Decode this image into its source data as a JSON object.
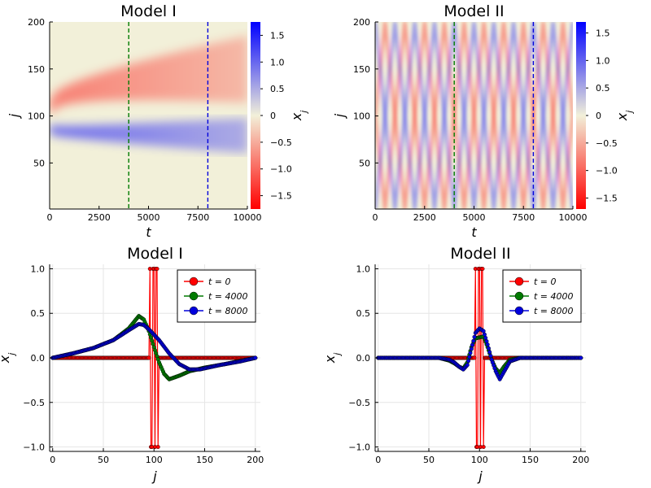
{
  "chart_data": [
    {
      "type": "heatmap",
      "title": "Model I",
      "xlabel": "t",
      "ylabel": "j",
      "colorbar_label": "x_j",
      "xlim": [
        0,
        10000
      ],
      "ylim": [
        1,
        200
      ],
      "xticks": [
        "0",
        "2500",
        "5000",
        "7500",
        "10000"
      ],
      "yticks": [
        "50",
        "100",
        "150",
        "200"
      ],
      "clim": [
        -1.75,
        1.75
      ],
      "colorbar_ticks": [
        "−1.5",
        "−1.0",
        "−0.5",
        "0",
        "0.5",
        "1.0",
        "1.5"
      ],
      "colors": {
        "negative": "#ff0000",
        "zero": "#f2f0d9",
        "positive": "#0000ff"
      },
      "vlines": [
        {
          "t": 4000,
          "color": "#007a00"
        },
        {
          "t": 8000,
          "color": "#0000dd"
        }
      ],
      "features": [
        {
          "kind": "band",
          "sign": "negative",
          "j_start": 110,
          "j_growth": 55,
          "peak": 0.3
        },
        {
          "kind": "band",
          "sign": "positive",
          "j_start": 85,
          "j_growth": -8,
          "peak": 0.35
        }
      ]
    },
    {
      "type": "heatmap",
      "title": "Model II",
      "xlabel": "t",
      "ylabel": "j",
      "colorbar_label": "x_j",
      "xlim": [
        0,
        10000
      ],
      "ylim": [
        1,
        200
      ],
      "xticks": [
        "0",
        "2500",
        "5000",
        "7500",
        "10000"
      ],
      "yticks": [
        "50",
        "100",
        "150",
        "200"
      ],
      "clim": [
        -1.7,
        1.7
      ],
      "colorbar_ticks": [
        "−1.5",
        "−1.0",
        "−0.5",
        "0",
        "0.5",
        "1.0",
        "1.5"
      ],
      "colors": {
        "negative": "#ff0000",
        "zero": "#f2f0d9",
        "positive": "#0000ff"
      },
      "vlines": [
        {
          "t": 4000,
          "color": "#007a00"
        },
        {
          "t": 8000,
          "color": "#0000dd"
        }
      ],
      "features": [
        {
          "kind": "reflecting-waves",
          "period": 1000,
          "origin_j": 100
        }
      ]
    },
    {
      "type": "line",
      "title": "Model I",
      "xlabel": "j",
      "ylabel": "x_j",
      "xlim": [
        -3,
        205
      ],
      "ylim": [
        -1.05,
        1.05
      ],
      "xticks": [
        "0",
        "50",
        "100",
        "150",
        "200"
      ],
      "yticks": [
        "−1.0",
        "−0.5",
        "0.0",
        "0.5",
        "1.0"
      ],
      "legend": "top-right",
      "series": [
        {
          "name": "t = 0",
          "color": "#ff0000",
          "profile": "initial",
          "points": [
            [
              0,
              0
            ],
            [
              94,
              0
            ],
            [
              96,
              1
            ],
            [
              97,
              -1
            ],
            [
              98,
              -1
            ],
            [
              99,
              1
            ],
            [
              100,
              1
            ],
            [
              101,
              -1
            ],
            [
              102,
              1
            ],
            [
              103,
              1
            ],
            [
              104,
              -1
            ],
            [
              106,
              0
            ],
            [
              200,
              0
            ]
          ]
        },
        {
          "name": "t = 4000",
          "color": "#007a00",
          "profile": "curve",
          "points": [
            [
              0,
              0
            ],
            [
              20,
              0.05
            ],
            [
              40,
              0.11
            ],
            [
              60,
              0.2
            ],
            [
              75,
              0.33
            ],
            [
              85,
              0.47
            ],
            [
              90,
              0.43
            ],
            [
              95,
              0.3
            ],
            [
              100,
              0.12
            ],
            [
              105,
              -0.05
            ],
            [
              110,
              -0.18
            ],
            [
              115,
              -0.24
            ],
            [
              125,
              -0.2
            ],
            [
              135,
              -0.15
            ],
            [
              150,
              -0.11
            ],
            [
              170,
              -0.07
            ],
            [
              200,
              0
            ]
          ]
        },
        {
          "name": "t = 8000",
          "color": "#0000dd",
          "profile": "curve",
          "points": [
            [
              0,
              0
            ],
            [
              20,
              0.05
            ],
            [
              40,
              0.11
            ],
            [
              60,
              0.2
            ],
            [
              75,
              0.31
            ],
            [
              85,
              0.38
            ],
            [
              90,
              0.37
            ],
            [
              95,
              0.32
            ],
            [
              105,
              0.2
            ],
            [
              115,
              0.05
            ],
            [
              125,
              -0.07
            ],
            [
              135,
              -0.13
            ],
            [
              145,
              -0.13
            ],
            [
              165,
              -0.08
            ],
            [
              185,
              -0.04
            ],
            [
              200,
              0
            ]
          ]
        }
      ]
    },
    {
      "type": "line",
      "title": "Model II",
      "xlabel": "j",
      "ylabel": "x_j",
      "xlim": [
        -3,
        205
      ],
      "ylim": [
        -1.05,
        1.05
      ],
      "xticks": [
        "0",
        "50",
        "100",
        "150",
        "200"
      ],
      "yticks": [
        "−1.0",
        "−0.5",
        "0.0",
        "0.5",
        "1.0"
      ],
      "legend": "top-right",
      "series": [
        {
          "name": "t = 0",
          "color": "#ff0000",
          "profile": "initial",
          "points": [
            [
              0,
              0
            ],
            [
              94,
              0
            ],
            [
              96,
              1
            ],
            [
              97,
              -1
            ],
            [
              98,
              -1
            ],
            [
              99,
              1
            ],
            [
              100,
              1
            ],
            [
              101,
              -1
            ],
            [
              102,
              1
            ],
            [
              103,
              1
            ],
            [
              104,
              -1
            ],
            [
              106,
              0
            ],
            [
              200,
              0
            ]
          ]
        },
        {
          "name": "t = 4000",
          "color": "#007a00",
          "profile": "curve",
          "points": [
            [
              0,
              0
            ],
            [
              60,
              0
            ],
            [
              70,
              -0.03
            ],
            [
              75,
              -0.06
            ],
            [
              80,
              -0.1
            ],
            [
              84,
              -0.12
            ],
            [
              88,
              -0.05
            ],
            [
              92,
              0.12
            ],
            [
              96,
              0.22
            ],
            [
              100,
              0.23
            ],
            [
              104,
              0.24
            ],
            [
              108,
              0.12
            ],
            [
              112,
              -0.02
            ],
            [
              116,
              -0.12
            ],
            [
              120,
              -0.17
            ],
            [
              124,
              -0.1
            ],
            [
              130,
              -0.02
            ],
            [
              140,
              0
            ],
            [
              200,
              0
            ]
          ]
        },
        {
          "name": "t = 8000",
          "color": "#0000dd",
          "profile": "curve",
          "points": [
            [
              0,
              0
            ],
            [
              60,
              0
            ],
            [
              70,
              -0.02
            ],
            [
              75,
              -0.05
            ],
            [
              80,
              -0.1
            ],
            [
              84,
              -0.13
            ],
            [
              88,
              -0.08
            ],
            [
              92,
              0.1
            ],
            [
              96,
              0.28
            ],
            [
              100,
              0.33
            ],
            [
              104,
              0.3
            ],
            [
              108,
              0.15
            ],
            [
              112,
              -0.02
            ],
            [
              116,
              -0.15
            ],
            [
              120,
              -0.24
            ],
            [
              124,
              -0.16
            ],
            [
              130,
              -0.04
            ],
            [
              140,
              0
            ],
            [
              200,
              0
            ]
          ]
        }
      ]
    }
  ]
}
